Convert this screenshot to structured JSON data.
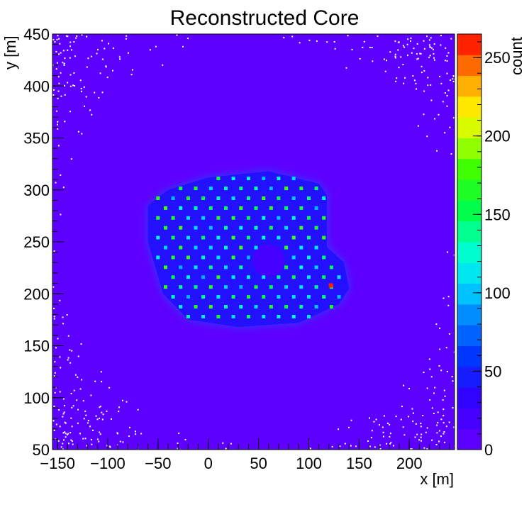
{
  "chart_data": {
    "type": "heatmap",
    "title": "Reconstructed Core",
    "xlabel": "x [m]",
    "ylabel": "y [m]",
    "zlabel": "count",
    "xlim": [
      -155,
      245
    ],
    "ylim": [
      50,
      450
    ],
    "zlim": [
      0,
      265
    ],
    "x_ticks": [
      -150,
      -100,
      -50,
      0,
      50,
      100,
      150,
      200
    ],
    "y_ticks": [
      50,
      100,
      150,
      200,
      250,
      300,
      350,
      400,
      450
    ],
    "z_ticks": [
      0,
      50,
      100,
      150,
      200,
      250
    ],
    "colormap": "ROOT rainbow (kBird-like): violet #6600ff at 0 -> blue -> cyan -> green -> yellow -> red #ff0000 at max",
    "background_count": 5,
    "footprint": {
      "region_polygon_xy": [
        [
          -60,
          285
        ],
        [
          -40,
          300
        ],
        [
          0,
          312
        ],
        [
          60,
          318
        ],
        [
          110,
          306
        ],
        [
          118,
          295
        ],
        [
          118,
          245
        ],
        [
          135,
          230
        ],
        [
          140,
          205
        ],
        [
          130,
          190
        ],
        [
          90,
          172
        ],
        [
          30,
          168
        ],
        [
          -20,
          175
        ],
        [
          -45,
          200
        ],
        [
          -60,
          250
        ]
      ],
      "interior_count": 40,
      "edge_count": 80,
      "notch_center_xy": [
        60,
        232
      ],
      "notch_radius": 16,
      "hotspot_xy": [
        122,
        208
      ],
      "hotspot_count": 260
    },
    "grid": false,
    "legend": "color scale at right"
  }
}
